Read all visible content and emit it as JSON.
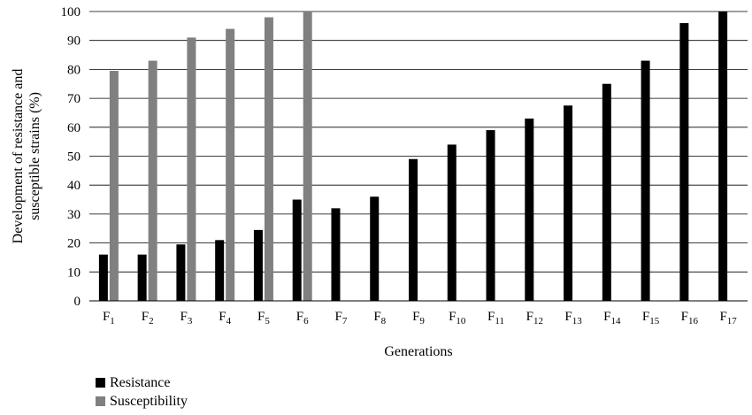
{
  "chart_data": {
    "type": "bar",
    "categories": [
      {
        "base": "F",
        "sub": "1"
      },
      {
        "base": "F",
        "sub": "2"
      },
      {
        "base": "F",
        "sub": "3"
      },
      {
        "base": "F",
        "sub": "4"
      },
      {
        "base": "F",
        "sub": "5"
      },
      {
        "base": "F",
        "sub": "6"
      },
      {
        "base": "F",
        "sub": "7"
      },
      {
        "base": "F",
        "sub": "8"
      },
      {
        "base": "F",
        "sub": "9"
      },
      {
        "base": "F",
        "sub": "10"
      },
      {
        "base": "F",
        "sub": "11"
      },
      {
        "base": "F",
        "sub": "12"
      },
      {
        "base": "F",
        "sub": "13"
      },
      {
        "base": "F",
        "sub": "14"
      },
      {
        "base": "F",
        "sub": "15"
      },
      {
        "base": "F",
        "sub": "16"
      },
      {
        "base": "F",
        "sub": "17"
      }
    ],
    "series": [
      {
        "name": "Resistance",
        "color": "#000000",
        "values": [
          16,
          16,
          19.5,
          21,
          24.5,
          35,
          32,
          36,
          49,
          54,
          59,
          63,
          67.5,
          75,
          83,
          96,
          100
        ]
      },
      {
        "name": "Susceptibility",
        "color": "#808080",
        "values": [
          79.5,
          83,
          91,
          94,
          98,
          100,
          null,
          null,
          null,
          null,
          null,
          null,
          null,
          null,
          null,
          null,
          null
        ]
      }
    ],
    "xlabel": "Generations",
    "ylabel_lines": [
      "Development of resistance and",
      "susceptible strains (%)"
    ],
    "ylim": [
      0,
      100
    ],
    "yticks": [
      0,
      10,
      20,
      30,
      40,
      50,
      60,
      70,
      80,
      90,
      100
    ],
    "grid": true,
    "legend_position": "bottom-left"
  }
}
